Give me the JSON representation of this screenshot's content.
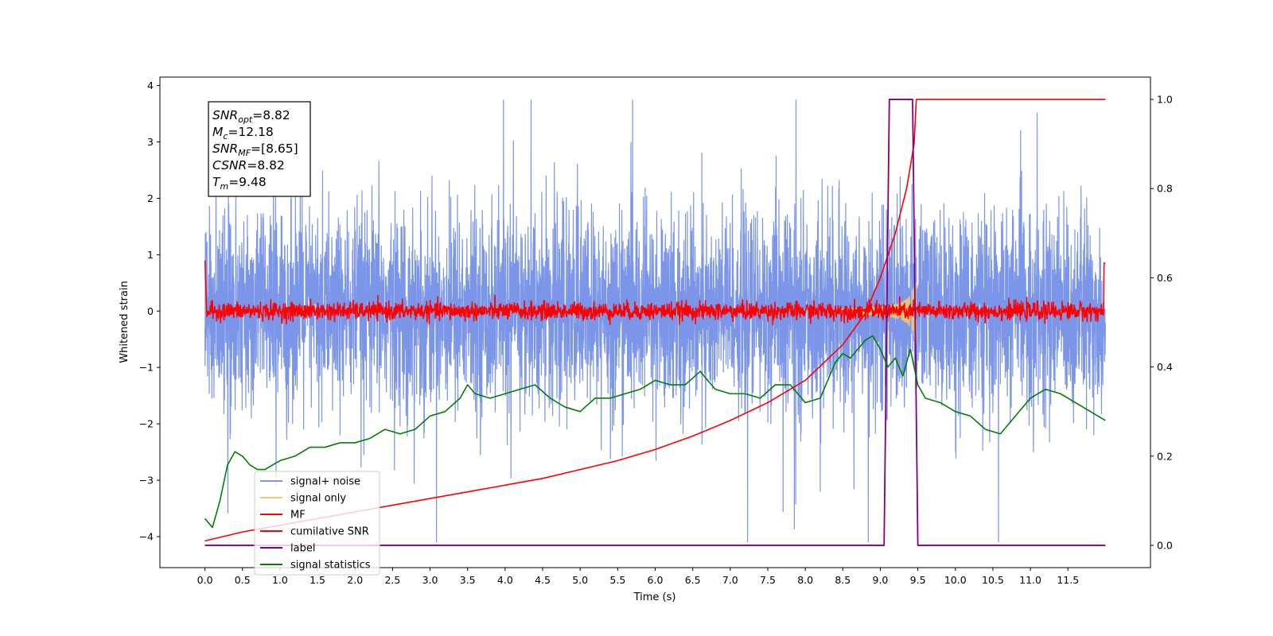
{
  "chart_data": {
    "type": "line",
    "xlabel": "Time (s)",
    "ylabel": "Whitened strain",
    "xlim": [
      -0.6,
      12.6
    ],
    "ylim": [
      -4.55,
      4.15
    ],
    "y2lim": [
      -0.05,
      1.05
    ],
    "xticks": [
      "0.0",
      "0.5",
      "1.0",
      "1.5",
      "2.0",
      "2.5",
      "3.0",
      "3.5",
      "4.0",
      "4.5",
      "5.0",
      "5.5",
      "6.0",
      "6.5",
      "7.0",
      "7.5",
      "8.0",
      "8.5",
      "9.0",
      "9.5",
      "10.0",
      "10.5",
      "11.0",
      "11.5"
    ],
    "yticks": [
      "4",
      "3",
      "2",
      "1",
      "0",
      "−1",
      "−2",
      "−3",
      "−4"
    ],
    "y2ticks": [
      "1.0",
      "0.8",
      "0.6",
      "0.4",
      "0.2",
      "0.0"
    ],
    "legend_position": "lower-left",
    "info_box": {
      "lines": [
        {
          "sym": "SNR",
          "sub": "opt",
          "val": "=8.82"
        },
        {
          "sym": "M",
          "sub": "c",
          "val": "=12.18"
        },
        {
          "sym": "SNR",
          "sub": "MF",
          "val": "=[8.65]"
        },
        {
          "sym": "CSNR",
          "sub": "",
          "val": "=8.82"
        },
        {
          "sym": "T",
          "sub": "m",
          "val": "=9.48"
        }
      ]
    },
    "series": [
      {
        "name": "signal+ noise",
        "color": "#7b96e8",
        "axis": "left",
        "style": "noise",
        "x_range": [
          0,
          12
        ],
        "stdev": 0.85
      },
      {
        "name": "signal only",
        "color": "#f5c86e",
        "axis": "left",
        "style": "chirp",
        "merger_time": 9.48
      },
      {
        "name": "MF",
        "color": "#ff0000",
        "axis": "left",
        "style": "mf-noise",
        "x_range": [
          0,
          12
        ],
        "stdev": 0.08
      },
      {
        "name": "cumilative SNR",
        "color": "#ff0000",
        "axis": "right",
        "x": [
          0,
          0.5,
          1,
          1.5,
          2,
          2.5,
          3,
          3.5,
          4,
          4.5,
          5,
          5.5,
          6,
          6.5,
          7,
          7.5,
          8,
          8.5,
          8.8,
          9,
          9.2,
          9.35,
          9.45,
          9.48,
          10,
          11,
          12
        ],
        "values": [
          0.01,
          0.03,
          0.045,
          0.06,
          0.075,
          0.09,
          0.105,
          0.12,
          0.135,
          0.15,
          0.17,
          0.19,
          0.215,
          0.245,
          0.28,
          0.32,
          0.37,
          0.45,
          0.52,
          0.6,
          0.7,
          0.8,
          0.9,
          1.0,
          1.0,
          1.0,
          1.0
        ]
      },
      {
        "name": "label",
        "color": "#800080",
        "axis": "right",
        "x": [
          0,
          9.05,
          9.12,
          9.43,
          9.5,
          12
        ],
        "values": [
          0,
          0,
          1,
          1,
          0,
          0
        ]
      },
      {
        "name": "signal statistics",
        "color": "#008000",
        "axis": "right",
        "x": [
          0,
          0.1,
          0.2,
          0.3,
          0.4,
          0.5,
          0.6,
          0.7,
          0.8,
          0.9,
          1.0,
          1.2,
          1.4,
          1.6,
          1.8,
          2.0,
          2.2,
          2.4,
          2.6,
          2.8,
          3.0,
          3.2,
          3.4,
          3.5,
          3.6,
          3.8,
          4.0,
          4.2,
          4.4,
          4.6,
          4.8,
          5.0,
          5.2,
          5.4,
          5.6,
          5.8,
          6.0,
          6.2,
          6.4,
          6.6,
          6.8,
          7.0,
          7.2,
          7.4,
          7.6,
          7.8,
          8.0,
          8.2,
          8.4,
          8.5,
          8.6,
          8.8,
          8.9,
          9.0,
          9.1,
          9.2,
          9.3,
          9.4,
          9.5,
          9.6,
          9.8,
          10.0,
          10.2,
          10.4,
          10.6,
          10.8,
          11.0,
          11.2,
          11.4,
          11.6,
          11.8,
          12.0
        ],
        "values": [
          0.06,
          0.04,
          0.1,
          0.18,
          0.21,
          0.2,
          0.18,
          0.17,
          0.17,
          0.18,
          0.19,
          0.2,
          0.22,
          0.22,
          0.23,
          0.23,
          0.24,
          0.26,
          0.25,
          0.26,
          0.29,
          0.3,
          0.33,
          0.36,
          0.34,
          0.33,
          0.34,
          0.35,
          0.36,
          0.33,
          0.31,
          0.3,
          0.33,
          0.33,
          0.34,
          0.35,
          0.37,
          0.36,
          0.36,
          0.39,
          0.35,
          0.34,
          0.34,
          0.33,
          0.36,
          0.36,
          0.32,
          0.33,
          0.41,
          0.43,
          0.42,
          0.46,
          0.47,
          0.44,
          0.4,
          0.42,
          0.38,
          0.44,
          0.36,
          0.33,
          0.32,
          0.3,
          0.29,
          0.26,
          0.25,
          0.29,
          0.33,
          0.35,
          0.34,
          0.32,
          0.3,
          0.28
        ]
      }
    ]
  }
}
